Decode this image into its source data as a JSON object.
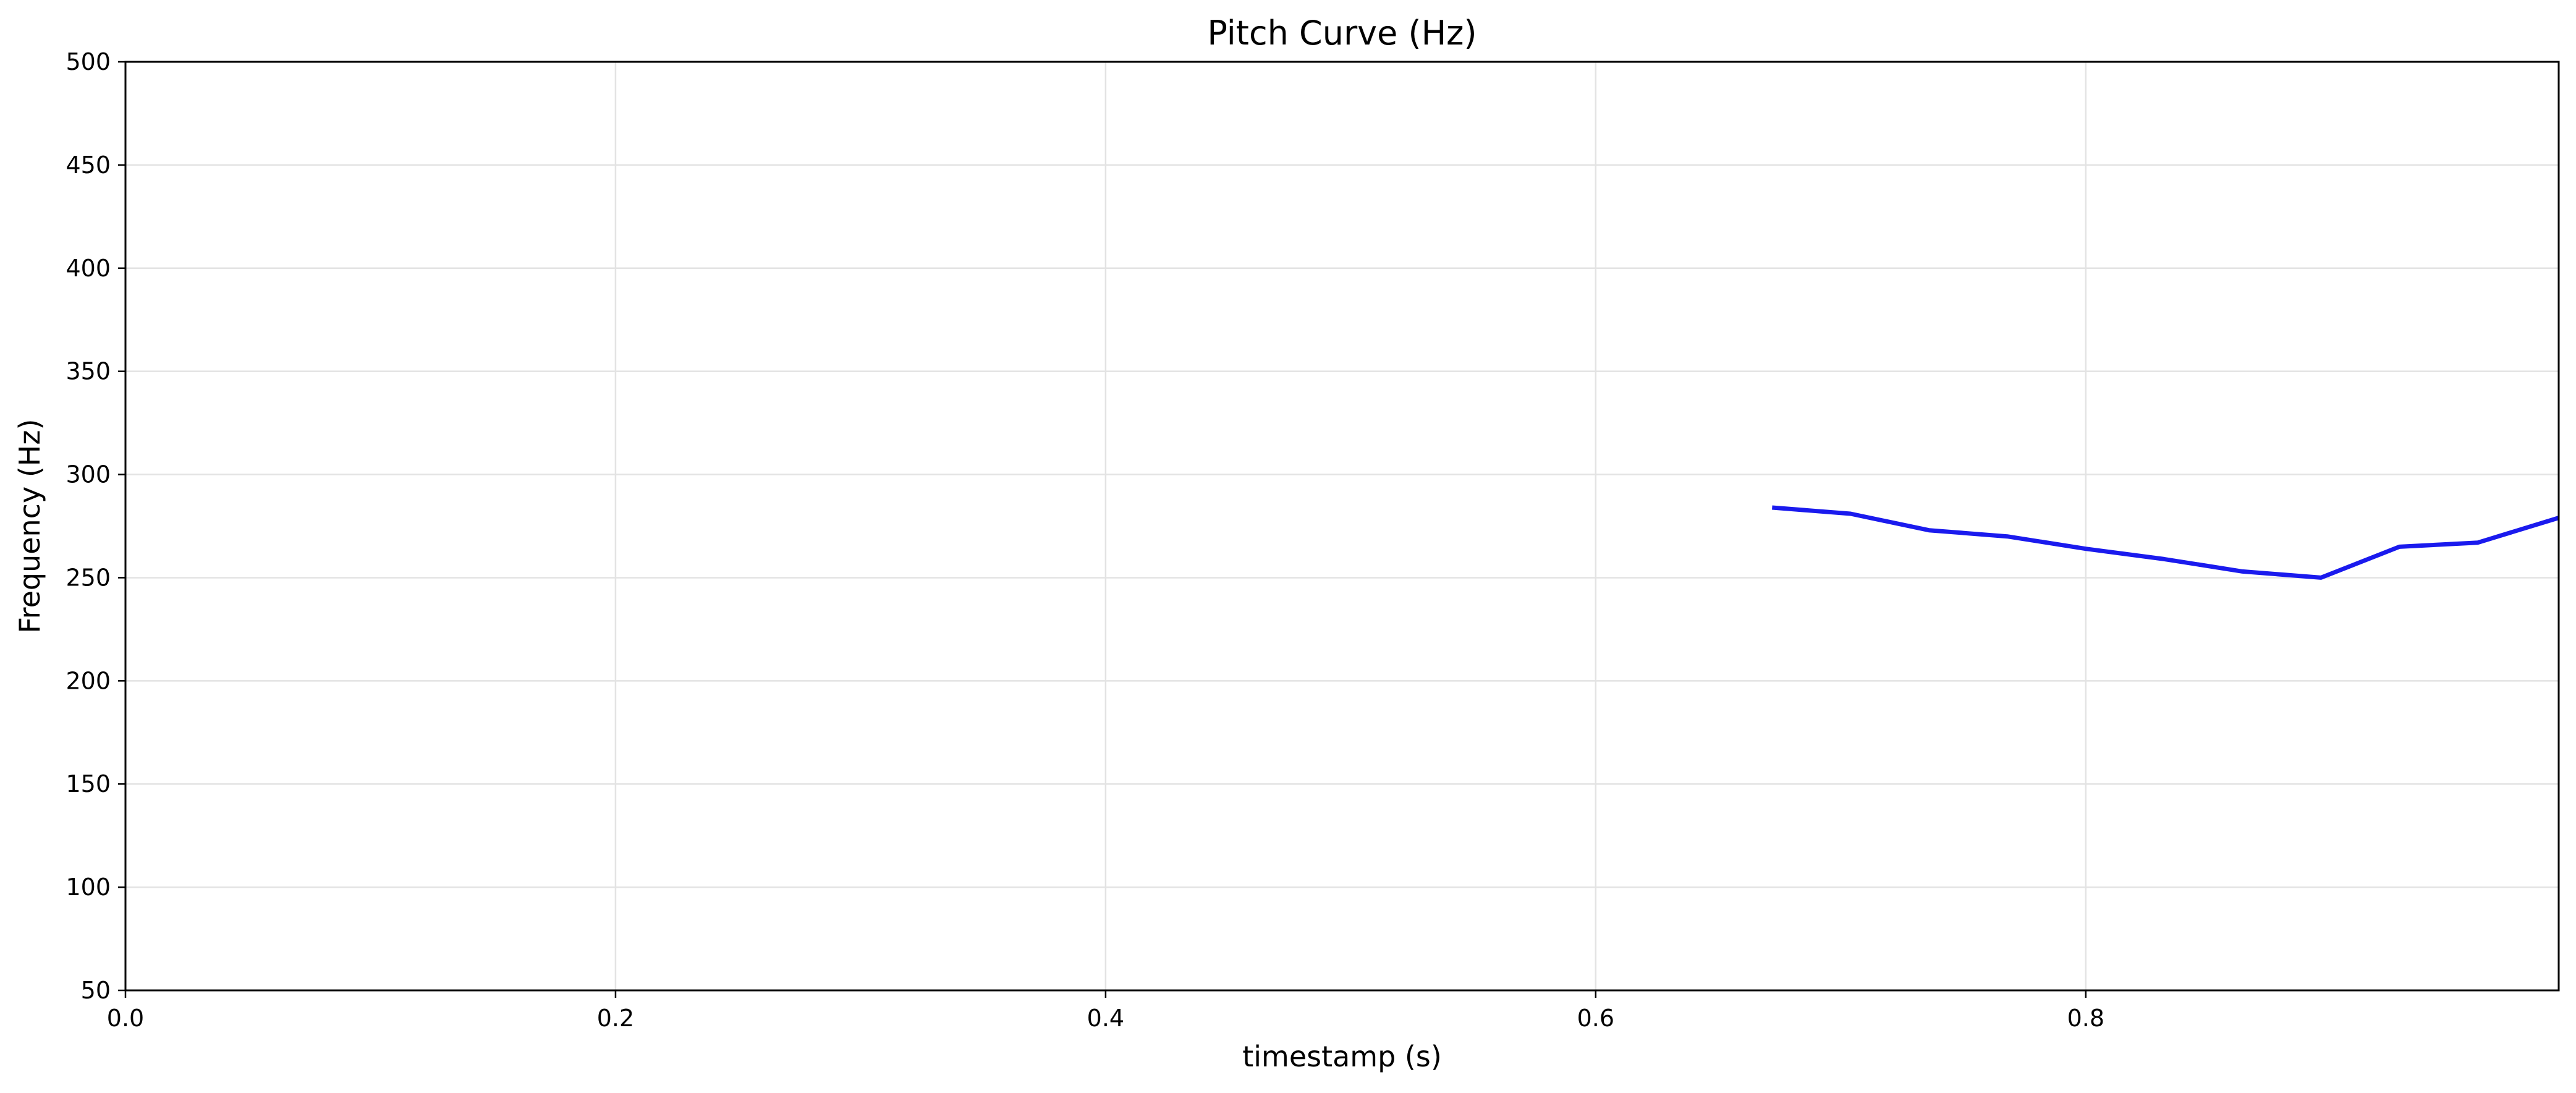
{
  "chart_data": {
    "type": "line",
    "title": "Pitch Curve (Hz)",
    "xlabel": "timestamp (s)",
    "ylabel": "Frequency (Hz)",
    "xlim": [
      0.0,
      0.993
    ],
    "ylim": [
      50,
      500
    ],
    "xticks": [
      0.0,
      0.2,
      0.4,
      0.6,
      0.8
    ],
    "xtick_labels": [
      "0.0",
      "0.2",
      "0.4",
      "0.6",
      "0.8"
    ],
    "yticks": [
      50,
      100,
      150,
      200,
      250,
      300,
      350,
      400,
      450,
      500
    ],
    "ytick_labels": [
      "50",
      "100",
      "150",
      "200",
      "250",
      "300",
      "350",
      "400",
      "450",
      "500"
    ],
    "grid": true,
    "series": [
      {
        "color": "#1a1aee",
        "x": [
          0.672,
          0.704,
          0.736,
          0.768,
          0.8,
          0.832,
          0.864,
          0.896,
          0.928,
          0.96,
          0.993
        ],
        "y": [
          284,
          281,
          273,
          270,
          264,
          259,
          253,
          250,
          265,
          267,
          279
        ]
      }
    ]
  }
}
